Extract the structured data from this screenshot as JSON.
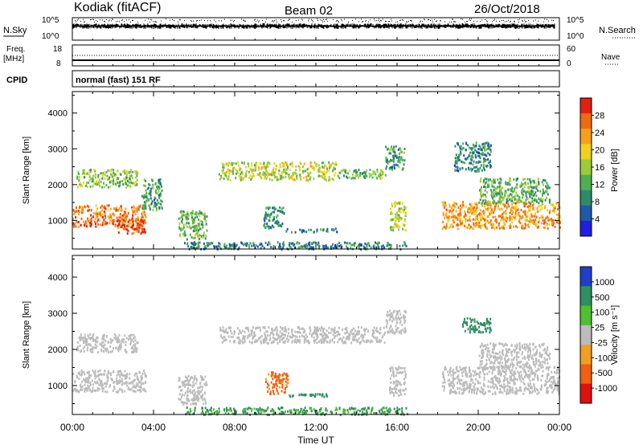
{
  "header": {
    "station": "Kodiak (fitACF)",
    "beam": "Beam 02",
    "date": "26/Oct/2018"
  },
  "strip": {
    "nsky_label": "N.Sky",
    "nsky_ticks": [
      "10^5",
      "10^0"
    ],
    "nsearch_label": "N.Search",
    "nsearch_ticks": [
      "10^5",
      "10^0"
    ],
    "freq_label_1": "Freq.",
    "freq_label_2": "[MHz]",
    "freq_ticks": [
      "18",
      "8"
    ],
    "nave_label": "Nave",
    "nave_ticks": [
      "60",
      "0"
    ],
    "cpid_label": "CPID",
    "cpid_value": "normal (fast) 151 RF"
  },
  "colors": {
    "power_scale": [
      "#1f1fe6",
      "#1f5aa8",
      "#2e8a6a",
      "#4fb04f",
      "#9ccc3a",
      "#f0d21c",
      "#f5a01a",
      "#f06a10",
      "#e02010"
    ],
    "velocity_scale": [
      "#1f3fc8",
      "#2f8f5f",
      "#50c030",
      "#bcbcbc",
      "#f0a020",
      "#f06010",
      "#e01010"
    ],
    "ground_scatter": "#bcbcbc"
  },
  "chart_data": [
    {
      "type": "heatmap",
      "title": "",
      "xlabel": "Time UT",
      "ylabel": "Slant Range [km]",
      "x_ticks": [
        "00:00",
        "04:00",
        "08:00",
        "12:00",
        "16:00",
        "20:00",
        "00:00"
      ],
      "y_ticks": [
        "1000",
        "2000",
        "3000",
        "4000"
      ],
      "ylim": [
        200,
        4600
      ],
      "xlim_hours": [
        0,
        24
      ],
      "colorbar": {
        "label": "Power [dB]",
        "ticks": [
          "28",
          "24",
          "20",
          "16",
          "12",
          "8",
          "4"
        ],
        "range": [
          0,
          30
        ]
      },
      "regions": [
        {
          "t0": 0.0,
          "t1": 3.6,
          "r0": 850,
          "r1": 1450,
          "value": 24
        },
        {
          "t0": 2.2,
          "t1": 3.6,
          "r0": 650,
          "r1": 1050,
          "value": 28
        },
        {
          "t0": 0.2,
          "t1": 3.2,
          "r0": 1950,
          "r1": 2450,
          "value": 14
        },
        {
          "t0": 3.4,
          "t1": 4.4,
          "r0": 1300,
          "r1": 2200,
          "value": 10
        },
        {
          "t0": 5.2,
          "t1": 6.6,
          "r0": 500,
          "r1": 1300,
          "value": 12
        },
        {
          "t0": 7.2,
          "t1": 13.0,
          "r0": 2150,
          "r1": 2650,
          "value": 16
        },
        {
          "t0": 13.0,
          "t1": 15.4,
          "r0": 2200,
          "r1": 2450,
          "value": 12
        },
        {
          "t0": 15.4,
          "t1": 16.4,
          "r0": 2450,
          "r1": 3100,
          "value": 10
        },
        {
          "t0": 10.5,
          "t1": 13.0,
          "r0": 700,
          "r1": 800,
          "value": 6
        },
        {
          "t0": 9.4,
          "t1": 10.4,
          "r0": 800,
          "r1": 1400,
          "value": 8
        },
        {
          "t0": 15.6,
          "t1": 16.4,
          "r0": 750,
          "r1": 1550,
          "value": 16
        },
        {
          "t0": 18.2,
          "t1": 24.0,
          "r0": 800,
          "r1": 1550,
          "value": 22
        },
        {
          "t0": 20.0,
          "t1": 23.5,
          "r0": 1500,
          "r1": 2200,
          "value": 12
        },
        {
          "t0": 18.8,
          "t1": 20.6,
          "r0": 2400,
          "r1": 3200,
          "value": 8
        },
        {
          "t0": 5.5,
          "t1": 16.5,
          "r0": 220,
          "r1": 420,
          "value": 8
        }
      ]
    },
    {
      "type": "heatmap",
      "title": "",
      "xlabel": "Time UT",
      "ylabel": "Slant Range [km]",
      "x_ticks": [
        "00:00",
        "04:00",
        "08:00",
        "12:00",
        "16:00",
        "20:00",
        "00:00"
      ],
      "y_ticks": [
        "1000",
        "2000",
        "3000",
        "4000"
      ],
      "ylim": [
        200,
        4600
      ],
      "xlim_hours": [
        0,
        24
      ],
      "colorbar": {
        "label": "Velocity [m s⁻¹]",
        "ticks": [
          "1000",
          "500",
          "100",
          "25",
          "-25",
          "-100",
          "-500",
          "-1000"
        ],
        "range": [
          -1000,
          1000
        ]
      },
      "regions": [
        {
          "t0": 0.0,
          "t1": 3.6,
          "r0": 850,
          "r1": 1450,
          "value": 0
        },
        {
          "t0": 0.2,
          "t1": 3.2,
          "r0": 1950,
          "r1": 2450,
          "value": 0
        },
        {
          "t0": 5.2,
          "t1": 6.6,
          "r0": 500,
          "r1": 1300,
          "value": 0
        },
        {
          "t0": 7.2,
          "t1": 15.4,
          "r0": 2200,
          "r1": 2650,
          "value": 0
        },
        {
          "t0": 15.4,
          "t1": 16.4,
          "r0": 2450,
          "r1": 3100,
          "value": 0
        },
        {
          "t0": 9.5,
          "t1": 10.6,
          "r0": 800,
          "r1": 1400,
          "value": -150
        },
        {
          "t0": 10.6,
          "t1": 12.8,
          "r0": 700,
          "r1": 800,
          "value": 200
        },
        {
          "t0": 15.6,
          "t1": 16.4,
          "r0": 750,
          "r1": 1550,
          "value": 0
        },
        {
          "t0": 18.2,
          "t1": 24.0,
          "r0": 800,
          "r1": 1550,
          "value": 0
        },
        {
          "t0": 20.0,
          "t1": 23.5,
          "r0": 1500,
          "r1": 2200,
          "value": 0
        },
        {
          "t0": 19.2,
          "t1": 20.6,
          "r0": 2500,
          "r1": 2900,
          "value": 300
        },
        {
          "t0": 5.5,
          "t1": 16.5,
          "r0": 220,
          "r1": 420,
          "value": 120
        }
      ]
    }
  ]
}
